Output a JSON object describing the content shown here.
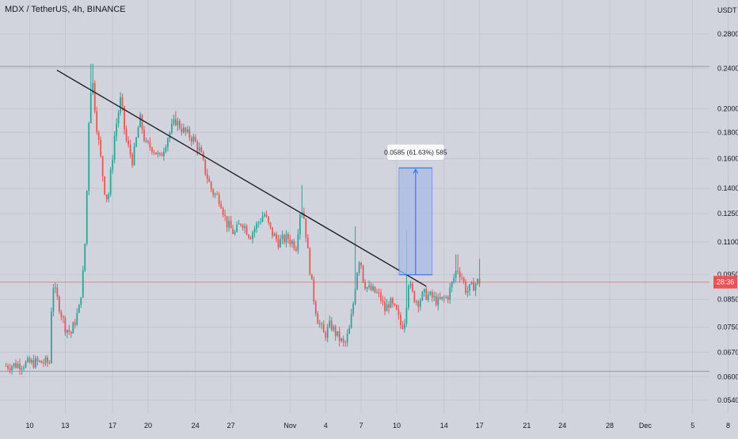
{
  "header": {
    "title": "MDX / TetherUS, 4h, BINANCE",
    "unit": "USDT"
  },
  "colors": {
    "background": "#d1d4dc",
    "grid": "#c3c6ce",
    "up": "#26a69a",
    "down": "#ef5350",
    "trendline": "#131722",
    "measure_fill": "#a9bde6",
    "measure_line": "#2962ff",
    "price_line": "#ef5350",
    "hline": "#9598a1"
  },
  "chart_data": {
    "type": "candlestick",
    "scale": "log",
    "ylim": [
      0.052,
      0.31
    ],
    "y_ticks": [
      "0.2800",
      "0.2400",
      "0.2000",
      "0.1800",
      "0.1600",
      "0.1400",
      "0.1250",
      "0.1100",
      "0.0950",
      "0.0850",
      "0.0750",
      "0.0670",
      "0.0600",
      "0.0540"
    ],
    "x_ticks": [
      "10",
      "13",
      "17",
      "20",
      "24",
      "27",
      "Nov",
      "4",
      "7",
      "10",
      "14",
      "17",
      "21",
      "24",
      "28",
      "Dec",
      "5",
      "8"
    ],
    "x_range_days": [
      -2,
      36
    ],
    "last_price_label": "28:36",
    "last_price": 0.0918,
    "horizontal_levels": [
      0.242,
      0.0615
    ],
    "trendline": {
      "start": {
        "day": 2.3,
        "price": 0.238
      },
      "end": {
        "day": 33.5,
        "price": 0.0901
      }
    },
    "measure": {
      "label": "0.0585 (61.63%) 585",
      "from_day": 31.2,
      "to_day": 34.0,
      "low_price": 0.0949,
      "high_price": 0.1534
    },
    "anchors": [
      [
        -2,
        0.063
      ],
      [
        0.5,
        0.064
      ],
      [
        1.7,
        0.064
      ],
      [
        1.9,
        0.092
      ],
      [
        3.0,
        0.075
      ],
      [
        3.5,
        0.073
      ],
      [
        4.2,
        0.082
      ],
      [
        4.6,
        0.1
      ],
      [
        4.8,
        0.13
      ],
      [
        5.0,
        0.19
      ],
      [
        5.25,
        0.235
      ],
      [
        5.6,
        0.19
      ],
      [
        6.0,
        0.16
      ],
      [
        6.3,
        0.14
      ],
      [
        6.6,
        0.132
      ],
      [
        7.2,
        0.18
      ],
      [
        7.7,
        0.21
      ],
      [
        8.1,
        0.175
      ],
      [
        8.7,
        0.158
      ],
      [
        9.3,
        0.192
      ],
      [
        9.8,
        0.17
      ],
      [
        10.4,
        0.168
      ],
      [
        11.0,
        0.16
      ],
      [
        11.6,
        0.175
      ],
      [
        12.3,
        0.19
      ],
      [
        13.1,
        0.18
      ],
      [
        13.8,
        0.175
      ],
      [
        14.4,
        0.165
      ],
      [
        14.8,
        0.152
      ],
      [
        15.4,
        0.138
      ],
      [
        16.1,
        0.133
      ],
      [
        16.6,
        0.12
      ],
      [
        17.3,
        0.114
      ],
      [
        17.9,
        0.121
      ],
      [
        18.6,
        0.113
      ],
      [
        19.3,
        0.12
      ],
      [
        19.8,
        0.125
      ],
      [
        20.4,
        0.115
      ],
      [
        21.0,
        0.11
      ],
      [
        21.8,
        0.112
      ],
      [
        22.5,
        0.108
      ],
      [
        22.9,
        0.13
      ],
      [
        23.2,
        0.122
      ],
      [
        23.5,
        0.105
      ],
      [
        23.9,
        0.088
      ],
      [
        24.3,
        0.078
      ],
      [
        24.9,
        0.072
      ],
      [
        25.4,
        0.076
      ],
      [
        26.0,
        0.072
      ],
      [
        26.6,
        0.069
      ],
      [
        27.0,
        0.074
      ],
      [
        27.3,
        0.082
      ],
      [
        27.6,
        0.095
      ],
      [
        27.9,
        0.104
      ],
      [
        28.2,
        0.092
      ],
      [
        28.6,
        0.089
      ],
      [
        29.1,
        0.088
      ],
      [
        29.6,
        0.086
      ],
      [
        30.0,
        0.081
      ],
      [
        30.4,
        0.084
      ],
      [
        31.0,
        0.08
      ],
      [
        31.4,
        0.075
      ],
      [
        31.7,
        0.078
      ],
      [
        32.0,
        0.092
      ],
      [
        32.4,
        0.086
      ],
      [
        32.8,
        0.084
      ],
      [
        33.3,
        0.087
      ],
      [
        33.9,
        0.086
      ],
      [
        34.5,
        0.084
      ],
      [
        35.3,
        0.086
      ],
      [
        35.8,
        0.093
      ],
      [
        36.1,
        0.098
      ],
      [
        36.5,
        0.094
      ],
      [
        36.9,
        0.088
      ],
      [
        37.4,
        0.09
      ],
      [
        37.8,
        0.092
      ]
    ],
    "wick_spikes": [
      [
        5.25,
        0.245
      ],
      [
        12.3,
        0.198
      ],
      [
        23.0,
        0.142
      ],
      [
        27.5,
        0.118
      ],
      [
        31.9,
        0.116
      ],
      [
        36.1,
        0.104
      ],
      [
        38.0,
        0.102
      ]
    ]
  }
}
